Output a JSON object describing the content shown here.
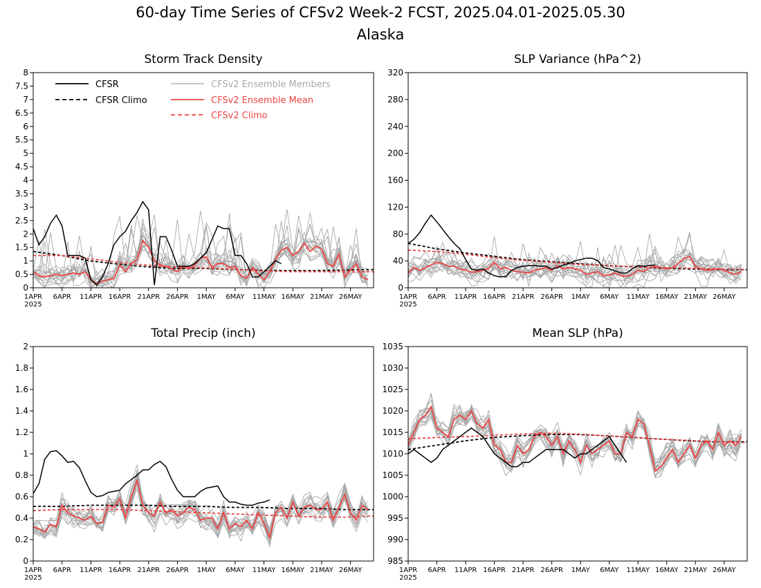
{
  "figure": {
    "title_line1": "60-day Time Series of CFSv2 Week-2 FCST, 2025.04.01-2025.05.30",
    "title_line2": "Alaska"
  },
  "colors": {
    "cfsr": "#000000",
    "cfsr_climo": "#000000",
    "members": "#a8a8a8",
    "ens_mean": "#ee4444",
    "cfsv2_climo": "#ee4444"
  },
  "legend": {
    "cfsr": "CFSR",
    "cfsr_climo": "CFSR Climo",
    "members": "CFSv2 Ensemble Members",
    "ens_mean": "CFSv2 Ensemble Mean",
    "cfsv2_climo": "CFSv2 Climo"
  },
  "chart_data": [
    {
      "type": "line",
      "title": "Storm Track Density",
      "ylim": [
        0,
        8
      ],
      "yticks": [
        "0",
        "0.5",
        "1",
        "1.5",
        "2",
        "2.5",
        "3",
        "3.5",
        "4",
        "4.5",
        "5",
        "5.5",
        "6",
        "6.5",
        "7",
        "7.5",
        "8"
      ],
      "xticks": [
        "1APR",
        "6APR",
        "11APR",
        "16APR",
        "21APR",
        "26APR",
        "1MAY",
        "6MAY",
        "11MAY",
        "16MAY",
        "21MAY",
        "26MAY"
      ],
      "xyear": "2025",
      "legend_position": "top-left",
      "series": [
        {
          "key": "cfsr",
          "values": [
            2.2,
            1.6,
            1.9,
            2.4,
            2.7,
            2.3,
            1.2,
            1.2,
            1.2,
            1.1,
            0.3,
            0.1,
            0.4,
            0.9,
            1.6,
            1.9,
            2.1,
            2.5,
            2.8,
            3.2,
            2.9,
            0.1,
            1.9,
            1.9,
            1.4,
            0.8,
            0.8,
            0.8,
            0.9,
            1.1,
            1.3,
            1.8,
            2.3,
            2.2,
            2.2,
            1.2,
            1.2,
            0.9,
            0.4,
            0.4,
            0.6,
            0.8,
            1.0,
            0.9
          ]
        },
        {
          "key": "cfsr_climo",
          "values": [
            1.35,
            1.2,
            1.0,
            0.88,
            0.78,
            0.72,
            0.72,
            0.68,
            0.65,
            0.64,
            0.64,
            0.66,
            0.68
          ]
        },
        {
          "key": "ens_mean",
          "values": [
            0.6,
            0.45,
            0.4,
            0.45,
            0.5,
            0.45,
            0.5,
            0.55,
            0.5,
            0.6,
            0.3,
            0.15,
            0.25,
            0.3,
            0.35,
            0.85,
            0.6,
            0.9,
            1.05,
            1.75,
            1.5,
            1.0,
            0.85,
            0.8,
            0.7,
            0.6,
            0.8,
            0.7,
            0.85,
            1.1,
            1.15,
            0.75,
            0.9,
            0.9,
            0.75,
            0.8,
            0.45,
            0.35,
            0.75,
            0.5,
            0.3,
            0.6,
            1.05,
            1.4,
            1.5,
            1.2,
            1.35,
            1.65,
            1.35,
            1.55,
            1.45,
            0.9,
            0.8,
            1.25,
            0.4,
            0.65,
            0.9,
            0.4,
            0.3
          ]
        },
        {
          "key": "cfsv2_climo",
          "values": [
            1.2,
            1.2,
            1.08,
            0.95,
            0.84,
            0.77,
            0.74,
            0.69,
            0.63,
            0.6,
            0.6,
            0.6,
            0.6
          ]
        }
      ]
    },
    {
      "type": "line",
      "title": "SLP Variance (hPa^2)",
      "ylim": [
        0,
        320
      ],
      "yticks": [
        "0",
        "40",
        "80",
        "120",
        "160",
        "200",
        "240",
        "280",
        "320"
      ],
      "xticks": [
        "1APR",
        "6APR",
        "11APR",
        "16APR",
        "21APR",
        "26APR",
        "1MAY",
        "6MAY",
        "11MAY",
        "16MAY",
        "21MAY",
        "26MAY"
      ],
      "xyear": "2025",
      "series": [
        {
          "key": "cfsr",
          "values": [
            66,
            72,
            82,
            96,
            108,
            98,
            87,
            76,
            66,
            58,
            42,
            28,
            26,
            28,
            22,
            18,
            16,
            17,
            26,
            30,
            32,
            33,
            33,
            32,
            32,
            28,
            30,
            34,
            36,
            40,
            42,
            44,
            44,
            40,
            30,
            28,
            25,
            22,
            22,
            28,
            33,
            32,
            33,
            34
          ]
        },
        {
          "key": "cfsr_climo",
          "values": [
            66,
            58,
            52,
            47,
            42,
            39,
            36,
            33,
            31,
            29,
            28,
            27,
            27
          ]
        },
        {
          "key": "ens_mean",
          "values": [
            22,
            30,
            26,
            30,
            34,
            38,
            36,
            32,
            32,
            28,
            26,
            23,
            24,
            26,
            29,
            38,
            28,
            30,
            26,
            24,
            23,
            22,
            26,
            28,
            30,
            26,
            33,
            28,
            30,
            28,
            26,
            20,
            22,
            24,
            18,
            19,
            22,
            18,
            17,
            20,
            26,
            24,
            30,
            32,
            30,
            28,
            30,
            36,
            44,
            46,
            32,
            28,
            26,
            27,
            28,
            26,
            22,
            20,
            24
          ]
        },
        {
          "key": "cfsv2_climo",
          "values": [
            56,
            54,
            50,
            45,
            41,
            38,
            35,
            33,
            31,
            30,
            29,
            28,
            27
          ]
        }
      ]
    },
    {
      "type": "line",
      "title": "Total Precip (inch)",
      "ylim": [
        0,
        2
      ],
      "yticks": [
        "0",
        "0.2",
        "0.4",
        "0.6",
        "0.8",
        "1",
        "1.2",
        "1.4",
        "1.6",
        "1.8",
        "2"
      ],
      "xticks": [
        "1APR",
        "6APR",
        "11APR",
        "16APR",
        "21APR",
        "26APR",
        "1MAY",
        "6MAY",
        "11MAY",
        "16MAY",
        "21MAY",
        "26MAY"
      ],
      "xyear": "2025",
      "series": [
        {
          "key": "cfsr",
          "values": [
            0.63,
            0.72,
            0.95,
            1.02,
            1.03,
            0.98,
            0.92,
            0.93,
            0.87,
            0.75,
            0.64,
            0.6,
            0.61,
            0.64,
            0.65,
            0.66,
            0.72,
            0.76,
            0.8,
            0.85,
            0.85,
            0.9,
            0.93,
            0.88,
            0.76,
            0.66,
            0.6,
            0.6,
            0.6,
            0.65,
            0.68,
            0.69,
            0.7,
            0.6,
            0.55,
            0.55,
            0.53,
            0.52,
            0.52,
            0.54,
            0.55,
            0.57
          ]
        },
        {
          "key": "cfsr_climo",
          "values": [
            0.51,
            0.51,
            0.52,
            0.52,
            0.52,
            0.51,
            0.51,
            0.5,
            0.5,
            0.49,
            0.49,
            0.48,
            0.48
          ]
        },
        {
          "key": "ens_mean",
          "values": [
            0.32,
            0.3,
            0.27,
            0.34,
            0.32,
            0.52,
            0.45,
            0.42,
            0.4,
            0.38,
            0.42,
            0.35,
            0.36,
            0.52,
            0.5,
            0.58,
            0.4,
            0.6,
            0.75,
            0.52,
            0.45,
            0.42,
            0.55,
            0.45,
            0.48,
            0.42,
            0.45,
            0.5,
            0.48,
            0.38,
            0.4,
            0.4,
            0.3,
            0.45,
            0.3,
            0.35,
            0.32,
            0.38,
            0.3,
            0.45,
            0.35,
            0.22,
            0.45,
            0.5,
            0.4,
            0.55,
            0.42,
            0.5,
            0.52,
            0.48,
            0.48,
            0.55,
            0.38,
            0.5,
            0.62,
            0.45,
            0.38,
            0.52,
            0.48
          ]
        },
        {
          "key": "cfsv2_climo",
          "values": [
            0.47,
            0.48,
            0.48,
            0.48,
            0.47,
            0.46,
            0.45,
            0.44,
            0.43,
            0.42,
            0.41,
            0.41,
            0.42
          ]
        }
      ]
    },
    {
      "type": "line",
      "title": "Mean SLP (hPa)",
      "ylim": [
        985,
        1035
      ],
      "yticks": [
        "985",
        "990",
        "995",
        "1000",
        "1005",
        "1010",
        "1015",
        "1020",
        "1025",
        "1030",
        "1035"
      ],
      "xticks": [
        "1APR",
        "6APR",
        "11APR",
        "16APR",
        "21APR",
        "26APR",
        "1MAY",
        "6MAY",
        "11MAY",
        "16MAY",
        "21MAY",
        "26MAY"
      ],
      "xyear": "2025",
      "series": [
        {
          "key": "cfsr",
          "values": [
            1010,
            1011,
            1010,
            1009,
            1008,
            1009,
            1011,
            1012,
            1013,
            1014,
            1015,
            1016,
            1015,
            1014,
            1012,
            1010,
            1009,
            1008,
            1007,
            1007,
            1008,
            1008,
            1009,
            1010,
            1011,
            1011,
            1011,
            1011,
            1010,
            1009,
            1010,
            1010,
            1011,
            1012,
            1013,
            1014,
            1012,
            1010,
            1008
          ]
        },
        {
          "key": "cfsr_climo",
          "values": [
            1011,
            1012,
            1013,
            1013.8,
            1014.2,
            1014.5,
            1014.5,
            1014.2,
            1013.8,
            1013.4,
            1013,
            1012.8,
            1012.8
          ]
        },
        {
          "key": "ens_mean",
          "values": [
            1012,
            1015,
            1018,
            1019,
            1021,
            1016,
            1015,
            1014,
            1018,
            1019,
            1018,
            1020,
            1017,
            1016,
            1018,
            1012,
            1011,
            1008,
            1008,
            1012,
            1010,
            1011,
            1014,
            1015,
            1014,
            1012,
            1014,
            1010,
            1013,
            1011,
            1008,
            1012,
            1010,
            1011,
            1012,
            1013,
            1010,
            1010,
            1015,
            1014,
            1018,
            1017,
            1012,
            1006,
            1007,
            1009,
            1011,
            1008,
            1010,
            1012,
            1009,
            1012,
            1013,
            1011,
            1015,
            1012,
            1013,
            1012,
            1014
          ]
        },
        {
          "key": "cfsv2_climo",
          "values": [
            1013.5,
            1013.8,
            1014,
            1014.3,
            1014.6,
            1014.8,
            1014.6,
            1014.2,
            1013.8,
            1013.4,
            1013.1,
            1012.8,
            1012.6
          ]
        }
      ]
    }
  ]
}
